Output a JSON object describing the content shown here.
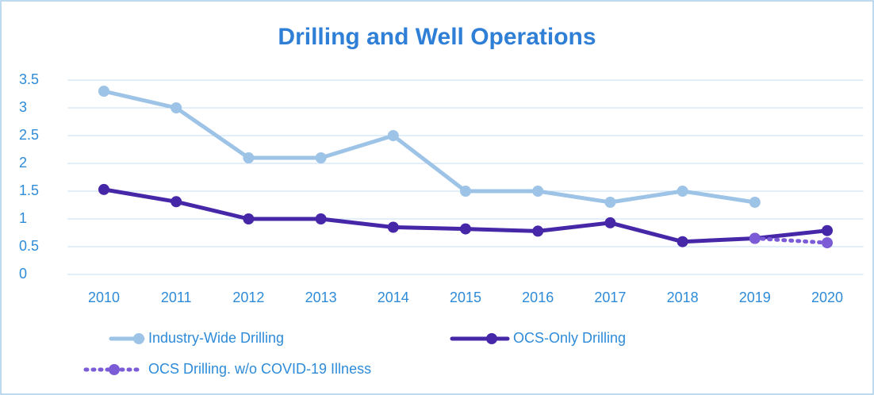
{
  "chart_data": {
    "type": "line",
    "title": "Drilling and Well Operations",
    "categories": [
      "2010",
      "2011",
      "2012",
      "2013",
      "2014",
      "2015",
      "2016",
      "2017",
      "2018",
      "2019",
      "2020"
    ],
    "series": [
      {
        "name": "Industry-Wide Drilling",
        "color": "#9dc3e6",
        "line_style": "solid",
        "values": [
          3.3,
          3.0,
          2.1,
          2.1,
          2.5,
          1.5,
          1.5,
          1.3,
          1.5,
          1.3,
          null
        ]
      },
      {
        "name": "OCS-Only Drilling",
        "color": "#4527a8",
        "line_style": "solid",
        "values": [
          1.53,
          1.31,
          1.0,
          1.0,
          0.85,
          0.82,
          0.78,
          0.93,
          0.59,
          0.65,
          0.79
        ]
      },
      {
        "name": "OCS Drilling. w/o COVID-19 Illness",
        "color": "#7b5bd6",
        "line_style": "dotted",
        "values": [
          null,
          null,
          null,
          null,
          null,
          null,
          null,
          null,
          null,
          0.65,
          0.57
        ]
      }
    ],
    "ylim": [
      0,
      3.5
    ],
    "yticks": [
      0,
      0.5,
      1,
      1.5,
      2,
      2.5,
      3,
      3.5
    ],
    "grid": true,
    "legend": "bottom"
  }
}
